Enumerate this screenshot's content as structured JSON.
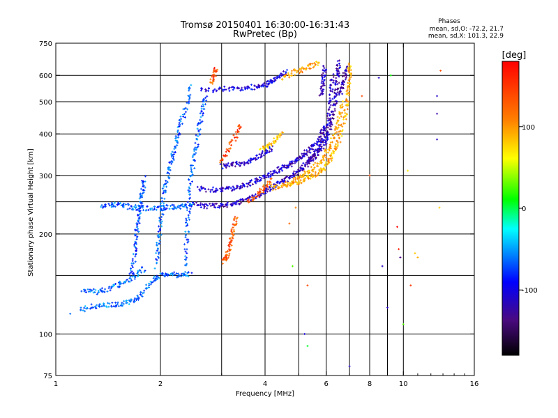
{
  "chart_data": {
    "type": "scatter",
    "title": "Tromsø 20150401 16:30:00-16:31:43",
    "subtitle": "RwPretec (Bp)",
    "stats": {
      "heading": "Phases",
      "line1": "mean, sd,O: -72.2, 21.7",
      "line2": "mean, sd,X: 101.3, 22.9"
    },
    "xlabel": "Frequency [MHz]",
    "ylabel": "Stationary phase Virtual Height [km]",
    "x_scale": "log",
    "y_scale": "log",
    "xlim": [
      1,
      16
    ],
    "ylim": [
      75,
      750
    ],
    "x_ticks": [
      1,
      2,
      4,
      6,
      8,
      10,
      16
    ],
    "x_minor_grid": [
      3,
      5,
      7,
      9
    ],
    "y_ticks": [
      75,
      100,
      200,
      300,
      400,
      500,
      600,
      750
    ],
    "y_minor_grid": [
      150,
      250
    ],
    "grid": true,
    "colorbar": {
      "label": "[deg]",
      "range": [
        -180,
        180
      ],
      "ticks": [
        100,
        0,
        -100
      ],
      "colors": [
        "#ff0000",
        "#ff8000",
        "#ffff00",
        "#00ff00",
        "#00ffff",
        "#0000ff",
        "#000000"
      ]
    },
    "traces": [
      {
        "phase": -80,
        "points": [
          [
            1.18,
            118
          ],
          [
            1.28,
            121
          ],
          [
            1.38,
            122
          ],
          [
            1.5,
            123
          ],
          [
            1.6,
            124
          ],
          [
            1.7,
            127
          ],
          [
            1.8,
            135
          ],
          [
            1.9,
            145
          ],
          [
            2.0,
            150
          ],
          [
            2.15,
            152
          ],
          [
            2.3,
            150
          ],
          [
            2.45,
            152
          ]
        ]
      },
      {
        "phase": -80,
        "points": [
          [
            1.2,
            136
          ],
          [
            1.3,
            134
          ],
          [
            1.4,
            136
          ],
          [
            1.5,
            140
          ],
          [
            1.6,
            145
          ],
          [
            1.7,
            150
          ],
          [
            1.8,
            158
          ]
        ]
      },
      {
        "phase": -85,
        "points": [
          [
            1.35,
            243
          ],
          [
            1.45,
            245
          ],
          [
            1.55,
            244
          ],
          [
            1.65,
            241
          ],
          [
            1.75,
            240
          ],
          [
            1.9,
            238
          ],
          [
            2.05,
            240
          ],
          [
            2.2,
            241
          ],
          [
            2.35,
            242
          ],
          [
            2.5,
            244
          ]
        ]
      },
      {
        "phase": -90,
        "points": [
          [
            1.65,
            150
          ],
          [
            1.68,
            170
          ],
          [
            1.7,
            190
          ],
          [
            1.72,
            210
          ],
          [
            1.74,
            230
          ],
          [
            1.76,
            255
          ],
          [
            1.78,
            275
          ],
          [
            1.8,
            295
          ]
        ]
      },
      {
        "phase": -85,
        "points": [
          [
            1.95,
            160
          ],
          [
            1.97,
            185
          ],
          [
            2.0,
            210
          ],
          [
            2.02,
            240
          ],
          [
            2.05,
            270
          ],
          [
            2.1,
            300
          ],
          [
            2.15,
            330
          ],
          [
            2.2,
            360
          ],
          [
            2.25,
            400
          ],
          [
            2.3,
            440
          ],
          [
            2.4,
            500
          ],
          [
            2.45,
            560
          ]
        ]
      },
      {
        "phase": -85,
        "points": [
          [
            2.35,
            160
          ],
          [
            2.38,
            190
          ],
          [
            2.4,
            220
          ],
          [
            2.42,
            260
          ],
          [
            2.45,
            300
          ],
          [
            2.5,
            340
          ],
          [
            2.55,
            380
          ],
          [
            2.6,
            430
          ],
          [
            2.65,
            480
          ],
          [
            2.7,
            520
          ]
        ]
      },
      {
        "phase": -130,
        "points": [
          [
            2.5,
            245
          ],
          [
            2.7,
            243
          ],
          [
            2.9,
            243
          ],
          [
            3.1,
            245
          ],
          [
            3.3,
            248
          ],
          [
            3.5,
            252
          ],
          [
            3.7,
            258
          ],
          [
            3.9,
            265
          ],
          [
            4.1,
            272
          ],
          [
            4.3,
            280
          ],
          [
            4.5,
            288
          ],
          [
            4.7,
            296
          ],
          [
            4.9,
            305
          ],
          [
            5.1,
            315
          ],
          [
            5.3,
            327
          ],
          [
            5.5,
            342
          ],
          [
            5.7,
            362
          ],
          [
            5.9,
            390
          ],
          [
            6.05,
            430
          ],
          [
            6.15,
            480
          ],
          [
            6.22,
            540
          ],
          [
            6.25,
            600
          ]
        ]
      },
      {
        "phase": -130,
        "points": [
          [
            2.55,
            275
          ],
          [
            2.8,
            272
          ],
          [
            3.0,
            272
          ],
          [
            3.2,
            274
          ],
          [
            3.4,
            278
          ],
          [
            3.6,
            283
          ],
          [
            3.8,
            290
          ],
          [
            4.0,
            298
          ],
          [
            4.2,
            305
          ],
          [
            4.4,
            312
          ],
          [
            4.6,
            320
          ],
          [
            4.8,
            328
          ],
          [
            5.0,
            337
          ],
          [
            5.2,
            348
          ],
          [
            5.4,
            360
          ],
          [
            5.6,
            375
          ],
          [
            5.8,
            395
          ],
          [
            5.95,
            420
          ]
        ]
      },
      {
        "phase": -125,
        "points": [
          [
            3.0,
            320
          ],
          [
            3.2,
            322
          ],
          [
            3.4,
            325
          ],
          [
            3.6,
            330
          ],
          [
            3.8,
            340
          ],
          [
            4.0,
            352
          ],
          [
            4.2,
            365
          ]
        ]
      },
      {
        "phase": -120,
        "points": [
          [
            2.6,
            540
          ],
          [
            2.9,
            545
          ],
          [
            3.2,
            548
          ],
          [
            3.5,
            550
          ],
          [
            3.8,
            555
          ],
          [
            4.0,
            560
          ],
          [
            4.2,
            575
          ],
          [
            4.4,
            595
          ],
          [
            4.6,
            615
          ]
        ]
      },
      {
        "phase": -135,
        "points": [
          [
            5.3,
            330
          ],
          [
            5.5,
            340
          ],
          [
            5.7,
            352
          ],
          [
            5.9,
            370
          ],
          [
            6.05,
            395
          ],
          [
            6.2,
            430
          ],
          [
            6.3,
            470
          ],
          [
            6.4,
            520
          ],
          [
            6.45,
            570
          ],
          [
            6.5,
            620
          ],
          [
            6.5,
            660
          ]
        ]
      },
      {
        "phase": -130,
        "points": [
          [
            5.8,
            520
          ],
          [
            5.85,
            560
          ],
          [
            5.9,
            600
          ],
          [
            5.95,
            640
          ]
        ]
      },
      {
        "phase": -135,
        "points": [
          [
            6.6,
            520
          ],
          [
            6.7,
            560
          ],
          [
            6.78,
            600
          ],
          [
            6.85,
            640
          ]
        ]
      },
      {
        "phase": 110,
        "points": [
          [
            4.6,
            280
          ],
          [
            4.9,
            285
          ],
          [
            5.2,
            292
          ],
          [
            5.5,
            300
          ],
          [
            5.8,
            310
          ],
          [
            6.0,
            322
          ],
          [
            6.2,
            340
          ],
          [
            6.4,
            365
          ],
          [
            6.6,
            400
          ],
          [
            6.8,
            450
          ],
          [
            6.9,
            500
          ],
          [
            6.95,
            550
          ],
          [
            7.0,
            600
          ],
          [
            7.02,
            660
          ]
        ]
      },
      {
        "phase": 115,
        "points": [
          [
            4.2,
            275
          ],
          [
            4.5,
            280
          ],
          [
            4.8,
            288
          ],
          [
            5.1,
            298
          ],
          [
            5.4,
            310
          ],
          [
            5.7,
            325
          ],
          [
            5.95,
            345
          ],
          [
            6.2,
            372
          ],
          [
            6.4,
            410
          ],
          [
            6.55,
            450
          ],
          [
            6.7,
            500
          ]
        ]
      },
      {
        "phase": 150,
        "points": [
          [
            3.05,
            165
          ],
          [
            3.1,
            170
          ],
          [
            3.15,
            180
          ],
          [
            3.2,
            195
          ],
          [
            3.25,
            210
          ],
          [
            3.3,
            225
          ]
        ]
      },
      {
        "phase": 150,
        "points": [
          [
            3.0,
            330
          ],
          [
            3.15,
            360
          ],
          [
            3.3,
            400
          ],
          [
            3.4,
            430
          ]
        ]
      },
      {
        "phase": 140,
        "points": [
          [
            3.6,
            250
          ],
          [
            3.8,
            262
          ],
          [
            4.0,
            278
          ],
          [
            4.2,
            290
          ]
        ]
      },
      {
        "phase": 150,
        "points": [
          [
            2.8,
            560
          ],
          [
            2.85,
            600
          ],
          [
            2.9,
            630
          ]
        ]
      },
      {
        "phase": 105,
        "points": [
          [
            3.9,
            360
          ],
          [
            4.1,
            370
          ],
          [
            4.3,
            385
          ],
          [
            4.5,
            400
          ]
        ]
      },
      {
        "phase": 115,
        "points": [
          [
            4.5,
            590
          ],
          [
            4.8,
            610
          ],
          [
            5.1,
            625
          ],
          [
            5.4,
            640
          ],
          [
            5.7,
            655
          ]
        ]
      }
    ],
    "scattered_points": [
      {
        "x": 5.2,
        "y": 100,
        "phase": -120
      },
      {
        "x": 5.3,
        "y": 140,
        "phase": 150
      },
      {
        "x": 5.3,
        "y": 92,
        "phase": 10
      },
      {
        "x": 7.0,
        "y": 80,
        "phase": -130
      },
      {
        "x": 8.0,
        "y": 300,
        "phase": 150
      },
      {
        "x": 8.5,
        "y": 590,
        "phase": -130
      },
      {
        "x": 9.0,
        "y": 120,
        "phase": -130
      },
      {
        "x": 9.2,
        "y": 600,
        "phase": 20
      },
      {
        "x": 9.6,
        "y": 210,
        "phase": 180
      },
      {
        "x": 9.7,
        "y": 180,
        "phase": 170
      },
      {
        "x": 9.8,
        "y": 170,
        "phase": -150
      },
      {
        "x": 10.0,
        "y": 107,
        "phase": 40
      },
      {
        "x": 10.5,
        "y": 140,
        "phase": 160
      },
      {
        "x": 10.8,
        "y": 175,
        "phase": 100
      },
      {
        "x": 11.0,
        "y": 170,
        "phase": 110
      },
      {
        "x": 12.5,
        "y": 520,
        "phase": -130
      },
      {
        "x": 12.5,
        "y": 385,
        "phase": -130
      },
      {
        "x": 12.5,
        "y": 460,
        "phase": -140
      },
      {
        "x": 12.8,
        "y": 620,
        "phase": 150
      },
      {
        "x": 12.7,
        "y": 240,
        "phase": 100
      },
      {
        "x": 10.3,
        "y": 310,
        "phase": 90
      },
      {
        "x": 8.7,
        "y": 160,
        "phase": -130
      },
      {
        "x": 7.6,
        "y": 520,
        "phase": 150
      },
      {
        "x": 4.8,
        "y": 160,
        "phase": 40
      },
      {
        "x": 4.9,
        "y": 240,
        "phase": 130
      },
      {
        "x": 4.7,
        "y": 215,
        "phase": 140
      },
      {
        "x": 1.1,
        "y": 115,
        "phase": -80
      }
    ]
  }
}
